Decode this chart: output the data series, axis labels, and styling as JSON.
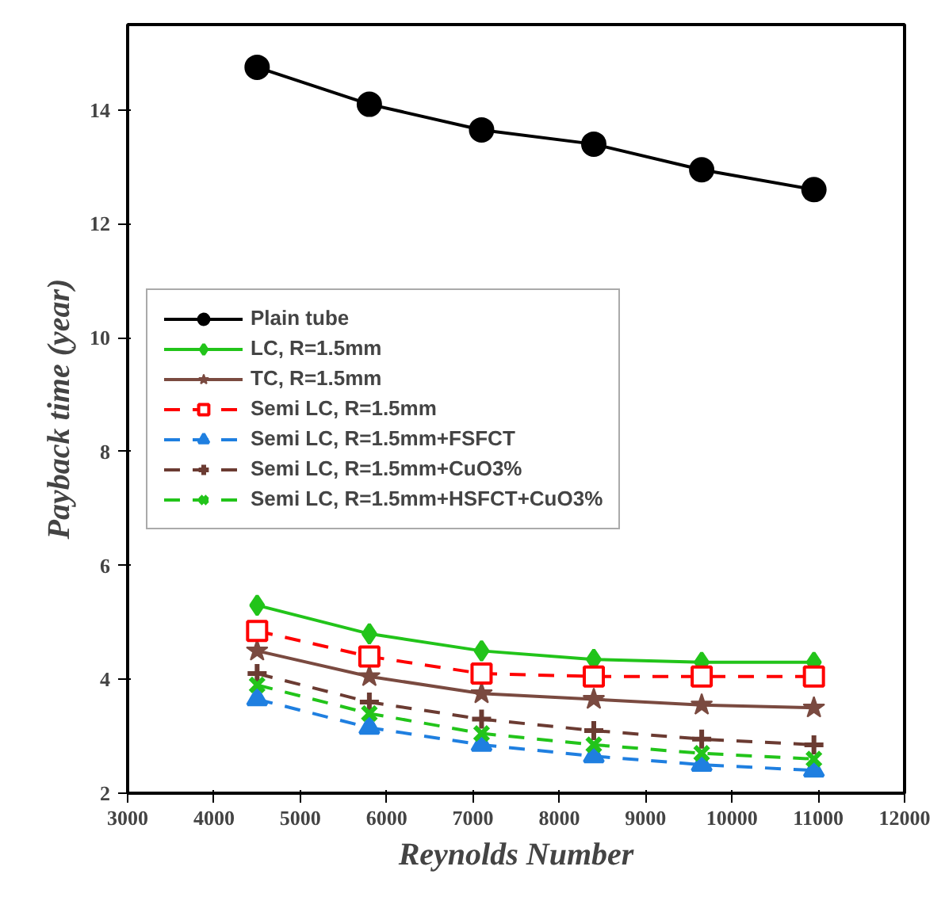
{
  "chart_data": {
    "type": "line",
    "xlabel": "Reynolds Number",
    "ylabel": "Payback time (year)",
    "x": [
      4500,
      5800,
      7100,
      8400,
      9650,
      10950
    ],
    "xlim": [
      3000,
      12000
    ],
    "xticks": [
      3000,
      4000,
      5000,
      6000,
      7000,
      8000,
      9000,
      10000,
      11000,
      12000
    ],
    "ylim": [
      2,
      15.5
    ],
    "yticks": [
      2,
      4,
      6,
      8,
      10,
      12,
      14
    ],
    "legend": "left",
    "grid": false,
    "series": [
      {
        "name": "Plain tube",
        "color": "#000000",
        "marker": "circle",
        "line_style": "solid",
        "values": [
          14.75,
          14.1,
          13.65,
          13.4,
          12.95,
          12.6
        ]
      },
      {
        "name": "LC, R=1.5mm",
        "color": "#22c41a",
        "marker": "diamond",
        "line_style": "solid",
        "values": [
          5.3,
          4.8,
          4.5,
          4.35,
          4.3,
          4.3
        ]
      },
      {
        "name": "TC, R=1.5mm",
        "color": "#7a4a40",
        "marker": "star",
        "line_style": "solid",
        "values": [
          4.5,
          4.05,
          3.75,
          3.65,
          3.55,
          3.5
        ]
      },
      {
        "name": "Semi LC, R=1.5mm",
        "color": "#ff0000",
        "marker": "square",
        "line_style": "dashed",
        "values": [
          4.85,
          4.4,
          4.1,
          4.05,
          4.05,
          4.05
        ]
      },
      {
        "name": "Semi LC, R=1.5mm+FSFCT",
        "color": "#1f7fe0",
        "marker": "triangle",
        "line_style": "dashed",
        "values": [
          3.65,
          3.15,
          2.85,
          2.65,
          2.5,
          2.4
        ]
      },
      {
        "name": "Semi LC, R=1.5mm+CuO3%",
        "color": "#6b3b32",
        "marker": "cross",
        "line_style": "dashed",
        "values": [
          4.1,
          3.6,
          3.3,
          3.1,
          2.95,
          2.85
        ]
      },
      {
        "name": "Semi LC, R=1.5mm+HSFCT+CuO3%",
        "color": "#22c41a",
        "marker": "x",
        "line_style": "dashed",
        "values": [
          3.9,
          3.4,
          3.05,
          2.85,
          2.7,
          2.6
        ]
      }
    ]
  }
}
